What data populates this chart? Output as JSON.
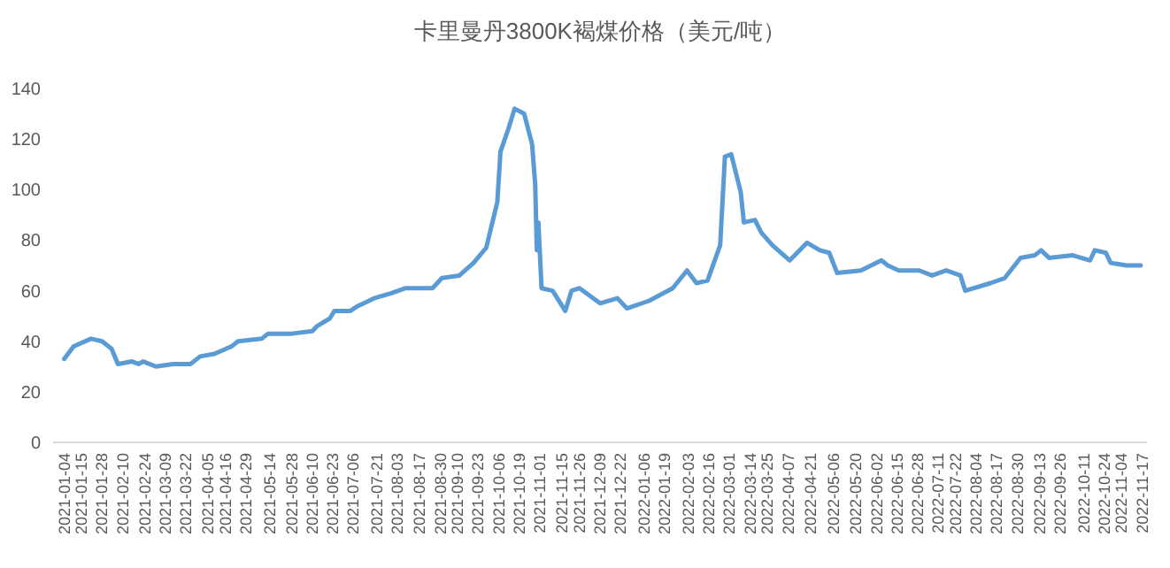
{
  "chart_data": {
    "type": "line",
    "title": "卡里曼丹3800K褐煤价格（美元/吨）",
    "x": [
      "2021-01-04",
      "2021-01-10",
      "2021-01-21",
      "2021-01-28",
      "2021-02-03",
      "2021-02-07",
      "2021-02-16",
      "2021-02-20",
      "2021-02-23",
      "2021-03-03",
      "2021-03-14",
      "2021-03-25",
      "2021-03-31",
      "2021-04-09",
      "2021-04-20",
      "2021-04-24",
      "2021-05-09",
      "2021-05-13",
      "2021-05-28",
      "2021-06-10",
      "2021-06-13",
      "2021-06-21",
      "2021-06-24",
      "2021-07-04",
      "2021-07-09",
      "2021-07-19",
      "2021-07-30",
      "2021-08-08",
      "2021-08-25",
      "2021-08-31",
      "2021-09-11",
      "2021-09-20",
      "2021-09-28",
      "2021-10-05",
      "2021-10-07",
      "2021-10-12",
      "2021-10-16",
      "2021-10-22",
      "2021-10-27",
      "2021-10-29",
      "2021-10-30",
      "2021-10-31",
      "2021-11-02",
      "2021-11-09",
      "2021-11-17",
      "2021-11-21",
      "2021-11-26",
      "2021-12-09",
      "2021-12-20",
      "2021-12-26",
      "2022-01-09",
      "2022-01-24",
      "2022-02-02",
      "2022-02-08",
      "2022-02-15",
      "2022-02-23",
      "2022-02-26",
      "2022-03-02",
      "2022-03-08",
      "2022-03-10",
      "2022-03-17",
      "2022-03-21",
      "2022-03-28",
      "2022-04-08",
      "2022-04-19",
      "2022-04-27",
      "2022-05-03",
      "2022-05-08",
      "2022-05-23",
      "2022-06-05",
      "2022-06-09",
      "2022-06-16",
      "2022-06-29",
      "2022-07-07",
      "2022-07-16",
      "2022-07-25",
      "2022-07-28",
      "2022-08-13",
      "2022-08-22",
      "2022-09-01",
      "2022-09-10",
      "2022-09-14",
      "2022-09-19",
      "2022-10-04",
      "2022-10-15",
      "2022-10-18",
      "2022-10-25",
      "2022-10-28",
      "2022-11-07",
      "2022-11-16"
    ],
    "series": [
      {
        "color": "#5b9bd5",
        "values": [
          33,
          38,
          41,
          40,
          37,
          31,
          32,
          31,
          32,
          30,
          31,
          31,
          34,
          35,
          38,
          40,
          41,
          43,
          43,
          44,
          46,
          49,
          52,
          52,
          54,
          57,
          59,
          61,
          61,
          65,
          66,
          71,
          77,
          95,
          115,
          124,
          132,
          130,
          118,
          102,
          76,
          87,
          61,
          60,
          52,
          60,
          61,
          55,
          57,
          53,
          56,
          61,
          68,
          63,
          64,
          78,
          113,
          114,
          99,
          87,
          88,
          83,
          78,
          72,
          79,
          76,
          75,
          67,
          68,
          72,
          70,
          68,
          68,
          66,
          68,
          66,
          60,
          63,
          65,
          73,
          74,
          76,
          73,
          74,
          72,
          76,
          75,
          71,
          70,
          70
        ]
      }
    ],
    "xlim": [
      "2020-12-28",
      "2022-11-20"
    ],
    "xticks": [
      "2021-01-04",
      "2021-01-15",
      "2021-01-28",
      "2021-02-10",
      "2021-02-24",
      "2021-03-09",
      "2021-03-22",
      "2021-04-05",
      "2021-04-16",
      "2021-04-29",
      "2021-05-14",
      "2021-05-28",
      "2021-06-10",
      "2021-06-23",
      "2021-07-06",
      "2021-07-21",
      "2021-08-03",
      "2021-08-17",
      "2021-08-30",
      "2021-09-10",
      "2021-09-23",
      "2021-10-06",
      "2021-10-19",
      "2021-11-01",
      "2021-11-15",
      "2021-11-26",
      "2021-12-09",
      "2021-12-22",
      "2022-01-06",
      "2022-01-19",
      "2022-02-03",
      "2022-02-16",
      "2022-03-01",
      "2022-03-14",
      "2022-03-25",
      "2022-04-07",
      "2022-04-21",
      "2022-05-06",
      "2022-05-20",
      "2022-06-02",
      "2022-06-15",
      "2022-06-28",
      "2022-07-11",
      "2022-07-22",
      "2022-08-04",
      "2022-08-17",
      "2022-08-30",
      "2022-09-13",
      "2022-09-26",
      "2022-10-11",
      "2022-10-24",
      "2022-11-04",
      "2022-11-17"
    ],
    "ylim": [
      0,
      140
    ],
    "yticks": [
      0,
      20,
      40,
      60,
      80,
      100,
      120,
      140
    ]
  }
}
